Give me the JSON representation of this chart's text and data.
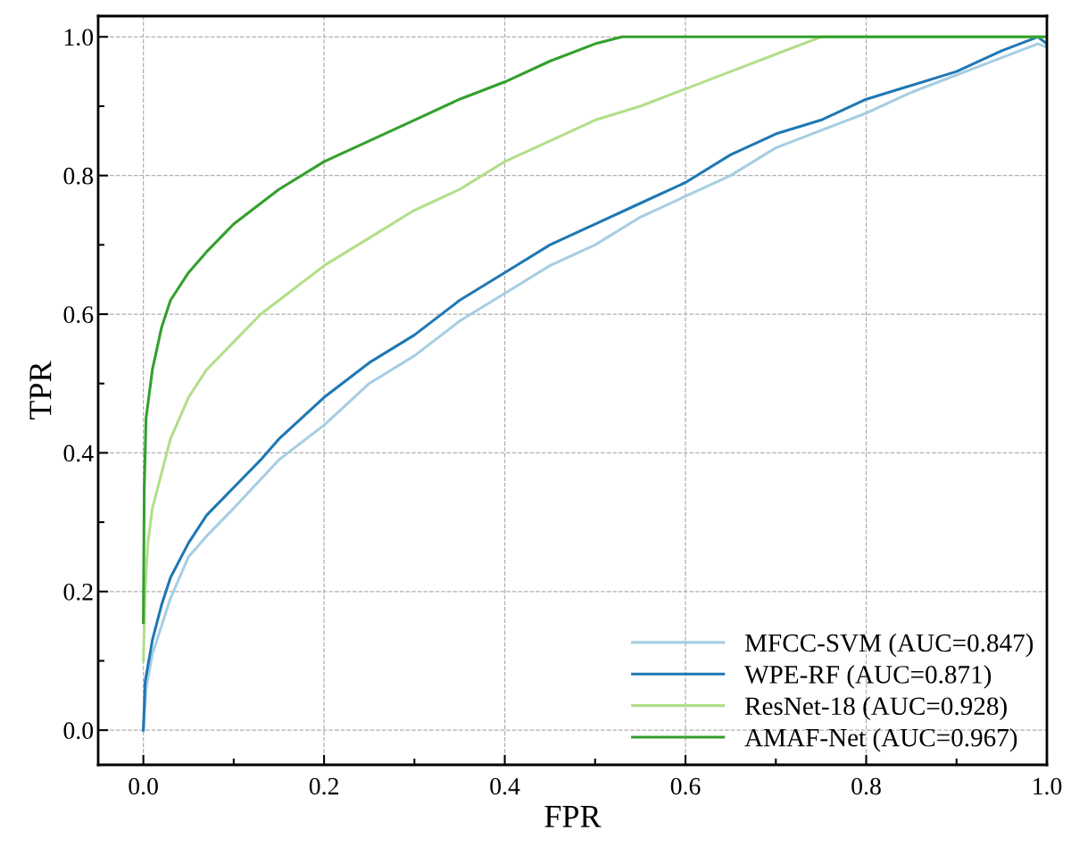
{
  "chart_data": {
    "type": "line",
    "xlabel": "FPR",
    "ylabel": "TPR",
    "xlim": [
      -0.05,
      1.0
    ],
    "ylim": [
      -0.05,
      1.03
    ],
    "xticks": [
      {
        "value": 0,
        "label": "0.0"
      },
      0.2,
      0.4,
      0.6,
      0.8,
      {
        "value": 1,
        "label": "1.0"
      }
    ],
    "yticks": [
      {
        "value": 0,
        "label": "0.0"
      },
      0.2,
      0.4,
      0.6,
      0.8,
      {
        "value": 1,
        "label": "1.0"
      }
    ],
    "grid": true,
    "legend": "bottom right",
    "marker": "none",
    "line_style": "solid",
    "series": [
      {
        "name": "MFCC-SVM (AUC=0.847)",
        "color": "#a6cee3",
        "x": [
          0,
          0.003,
          0.01,
          0.02,
          0.03,
          0.05,
          0.07,
          0.1,
          0.15,
          0.2,
          0.25,
          0.3,
          0.35,
          0.4,
          0.45,
          0.5,
          0.55,
          0.6,
          0.65,
          0.7,
          0.75,
          0.8,
          0.85,
          0.9,
          0.95,
          0.99,
          1.0
        ],
        "values": [
          0,
          0.06,
          0.11,
          0.15,
          0.19,
          0.25,
          0.28,
          0.32,
          0.39,
          0.44,
          0.5,
          0.54,
          0.59,
          0.63,
          0.67,
          0.7,
          0.74,
          0.77,
          0.8,
          0.84,
          0.865,
          0.89,
          0.92,
          0.945,
          0.97,
          0.99,
          0.985
        ]
      },
      {
        "name": "WPE-RF (AUC=0.871)",
        "color": "#1f78b4",
        "x": [
          0,
          0.002,
          0.01,
          0.02,
          0.03,
          0.05,
          0.07,
          0.1,
          0.13,
          0.15,
          0.2,
          0.25,
          0.3,
          0.35,
          0.4,
          0.45,
          0.5,
          0.55,
          0.6,
          0.65,
          0.7,
          0.75,
          0.8,
          0.85,
          0.9,
          0.95,
          0.99,
          1.0
        ],
        "values": [
          0,
          0.07,
          0.13,
          0.18,
          0.22,
          0.27,
          0.31,
          0.35,
          0.39,
          0.42,
          0.48,
          0.53,
          0.57,
          0.62,
          0.66,
          0.7,
          0.73,
          0.76,
          0.79,
          0.83,
          0.86,
          0.88,
          0.91,
          0.93,
          0.95,
          0.98,
          1.0,
          0.99
        ]
      },
      {
        "name": "ResNet-18 (AUC=0.928)",
        "color": "#b2df8a",
        "x": [
          0,
          0.002,
          0.005,
          0.01,
          0.02,
          0.03,
          0.05,
          0.07,
          0.1,
          0.13,
          0.15,
          0.2,
          0.25,
          0.3,
          0.35,
          0.4,
          0.45,
          0.5,
          0.55,
          0.6,
          0.65,
          0.7,
          0.75,
          1.0
        ],
        "values": [
          0.1,
          0.2,
          0.27,
          0.32,
          0.37,
          0.42,
          0.48,
          0.52,
          0.56,
          0.6,
          0.62,
          0.67,
          0.71,
          0.75,
          0.78,
          0.82,
          0.85,
          0.88,
          0.9,
          0.925,
          0.95,
          0.975,
          1.0,
          1.0
        ]
      },
      {
        "name": "AMAF-Net (AUC=0.967)",
        "color": "#33a02c",
        "x": [
          0,
          0.001,
          0.003,
          0.01,
          0.02,
          0.03,
          0.05,
          0.07,
          0.1,
          0.13,
          0.15,
          0.2,
          0.25,
          0.3,
          0.35,
          0.4,
          0.45,
          0.5,
          0.53,
          1.0
        ],
        "values": [
          0.155,
          0.35,
          0.45,
          0.52,
          0.58,
          0.62,
          0.66,
          0.69,
          0.73,
          0.76,
          0.78,
          0.82,
          0.85,
          0.88,
          0.91,
          0.935,
          0.965,
          0.99,
          1.0,
          1.0
        ]
      }
    ]
  }
}
